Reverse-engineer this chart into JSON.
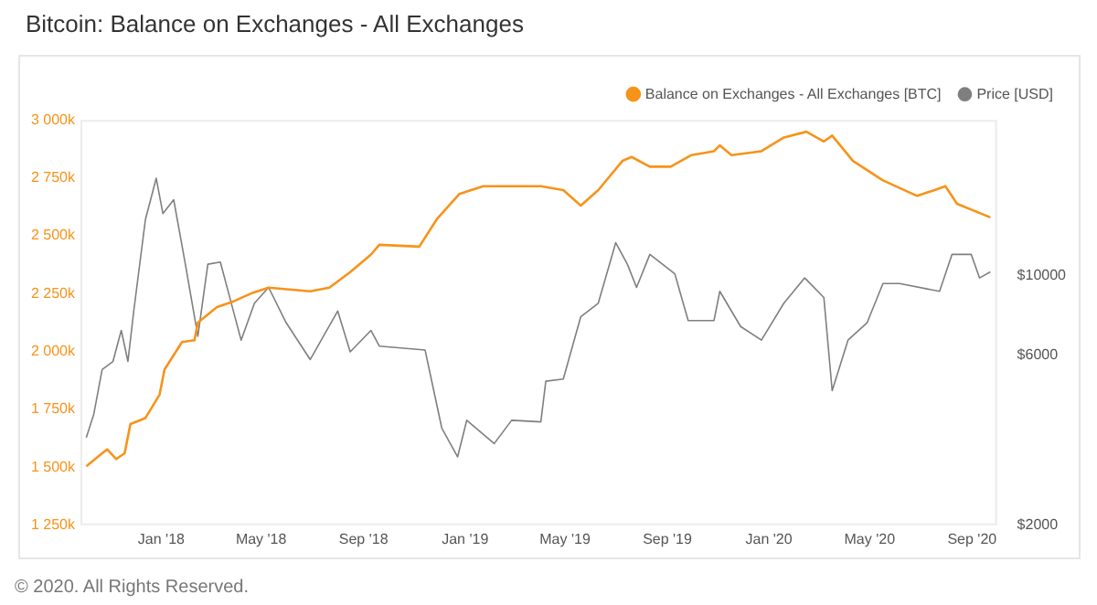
{
  "chart_data": {
    "type": "line",
    "title": "Bitcoin: Balance on Exchanges - All Exchanges",
    "annotations": [
      "© 2020. All Rights Reserved."
    ],
    "legend": "top right",
    "grid": false,
    "marker": "none",
    "log": "y2",
    "xlim": [
      "2017-09-26",
      "2020-10-01"
    ],
    "xticks": [
      {
        "value": "2018-01-01",
        "label": "Jan '18"
      },
      {
        "value": "2018-05-01",
        "label": "May '18"
      },
      {
        "value": "2018-09-01",
        "label": "Sep '18"
      },
      {
        "value": "2019-01-01",
        "label": "Jan '19"
      },
      {
        "value": "2019-05-01",
        "label": "May '19"
      },
      {
        "value": "2019-09-01",
        "label": "Sep '19"
      },
      {
        "value": "2020-01-01",
        "label": "Jan '20"
      },
      {
        "value": "2020-05-01",
        "label": "May '20"
      },
      {
        "value": "2020-09-01",
        "label": "Sep '20"
      }
    ],
    "ylim": [
      1250000,
      3000000
    ],
    "yticks": [
      {
        "value": 1250000,
        "label": "1 250k"
      },
      {
        "value": 1500000,
        "label": "1 500k"
      },
      {
        "value": 1750000,
        "label": "1 750k"
      },
      {
        "value": 2000000,
        "label": "2 000k"
      },
      {
        "value": 2250000,
        "label": "2 250k"
      },
      {
        "value": 2500000,
        "label": "2 500k"
      },
      {
        "value": 2750000,
        "label": "2 750k"
      },
      {
        "value": 3000000,
        "label": "3 000k"
      }
    ],
    "y2lim": [
      2000,
      27400
    ],
    "y2ticks": [
      {
        "value": 2000,
        "label": "$2000"
      },
      {
        "value": 6000,
        "label": "$6000"
      },
      {
        "value": 10000,
        "label": "$10000"
      }
    ],
    "series": [
      {
        "name": "Balance on Exchanges - All Exchanges [BTC]",
        "color": "#f7931a",
        "x": [
          "2017-10-03",
          "2017-10-22",
          "2017-10-28",
          "2017-11-08",
          "2017-11-18",
          "2017-11-25",
          "2017-12-13",
          "2017-12-30",
          "2018-01-05",
          "2018-01-26",
          "2018-02-10",
          "2018-02-14",
          "2018-03-09",
          "2018-03-29",
          "2018-04-19",
          "2018-05-10",
          "2018-06-29",
          "2018-07-22",
          "2018-08-16",
          "2018-09-10",
          "2018-09-20",
          "2018-11-07",
          "2018-11-28",
          "2018-12-25",
          "2019-01-23",
          "2019-04-02",
          "2019-04-29",
          "2019-05-20",
          "2019-06-10",
          "2019-07-09",
          "2019-07-20",
          "2019-08-11",
          "2019-09-05",
          "2019-09-30",
          "2019-10-27",
          "2019-11-03",
          "2019-11-17",
          "2019-12-23",
          "2020-01-19",
          "2020-02-15",
          "2020-03-07",
          "2020-03-17",
          "2020-04-11",
          "2020-05-17",
          "2020-06-27",
          "2020-07-18",
          "2020-07-31",
          "2020-08-14",
          "2020-09-23"
        ],
        "values": [
          1505000,
          1561000,
          1578000,
          1536000,
          1561000,
          1687000,
          1713000,
          1814000,
          1923000,
          2041000,
          2049000,
          2125000,
          2192000,
          2217000,
          2251000,
          2276000,
          2260000,
          2276000,
          2343000,
          2419000,
          2461000,
          2453000,
          2571000,
          2680000,
          2714000,
          2714000,
          2697000,
          2630000,
          2697000,
          2823000,
          2840000,
          2798000,
          2798000,
          2848000,
          2865000,
          2890000,
          2848000,
          2865000,
          2924000,
          2949000,
          2907000,
          2932000,
          2823000,
          2739000,
          2672000,
          2697000,
          2714000,
          2638000,
          2579000
        ]
      },
      {
        "name": "Price [USD]",
        "color": "#7f7f7f",
        "axis": "y2",
        "x": [
          "2017-10-03",
          "2017-10-12",
          "2017-10-22",
          "2017-11-04",
          "2017-11-14",
          "2017-11-22",
          "2017-11-29",
          "2017-12-13",
          "2017-12-26",
          "2018-01-03",
          "2018-01-16",
          "2018-01-30",
          "2018-02-14",
          "2018-02-26",
          "2018-03-13",
          "2018-04-07",
          "2018-04-23",
          "2018-05-10",
          "2018-05-31",
          "2018-06-29",
          "2018-08-01",
          "2018-08-16",
          "2018-09-10",
          "2018-09-20",
          "2018-11-14",
          "2018-11-24",
          "2018-12-04",
          "2018-12-23",
          "2019-01-03",
          "2019-02-05",
          "2019-02-26",
          "2019-04-02",
          "2019-04-08",
          "2019-04-29",
          "2019-05-20",
          "2019-06-10",
          "2019-07-01",
          "2019-07-15",
          "2019-07-26",
          "2019-08-11",
          "2019-09-10",
          "2019-09-26",
          "2019-10-27",
          "2019-11-03",
          "2019-11-28",
          "2019-12-23",
          "2020-01-19",
          "2020-02-13",
          "2020-03-07",
          "2020-03-17",
          "2020-04-05",
          "2020-04-28",
          "2020-05-17",
          "2020-06-06",
          "2020-07-24",
          "2020-08-08",
          "2020-08-31",
          "2020-09-10",
          "2020-09-23"
        ],
        "values": [
          3524,
          4100,
          5470,
          5760,
          7040,
          5760,
          7980,
          14400,
          18800,
          14970,
          16360,
          10790,
          6780,
          10790,
          10940,
          6610,
          8390,
          9290,
          7400,
          5830,
          7980,
          6130,
          7040,
          6360,
          6200,
          4820,
          3750,
          3110,
          3940,
          3390,
          3940,
          3900,
          5070,
          5140,
          7690,
          8390,
          12400,
          10790,
          9290,
          11500,
          10140,
          7500,
          7500,
          9060,
          7220,
          6610,
          8390,
          9880,
          8710,
          4770,
          6610,
          7400,
          9530,
          9530,
          9060,
          11500,
          11500,
          9880,
          10270
        ]
      }
    ]
  }
}
